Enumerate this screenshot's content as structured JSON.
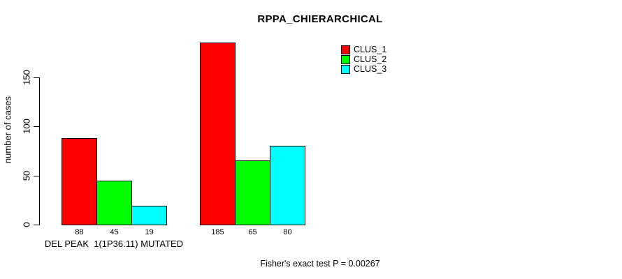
{
  "chart_data": {
    "type": "bar",
    "title": "RPPA_CHIERARCHICAL",
    "ylabel": "number of cases",
    "xlabel": "",
    "ylim": [
      0,
      150
    ],
    "yticks": [
      0,
      50,
      100,
      150
    ],
    "grid": false,
    "legend_position": "top-right",
    "bar_value_labels": true,
    "series": [
      {
        "name": "CLUS_1",
        "color": "#ff0000"
      },
      {
        "name": "CLUS_2",
        "color": "#00ff00"
      },
      {
        "name": "CLUS_3",
        "color": "#00ffff"
      }
    ],
    "groups": [
      {
        "label": "DEL PEAK  1(1P36.11) MUTATED",
        "values": [
          88,
          45,
          19
        ]
      },
      {
        "label": "",
        "values": [
          185,
          65,
          80
        ]
      }
    ],
    "annotation": "Fisher's exact test P = 0.00267"
  }
}
